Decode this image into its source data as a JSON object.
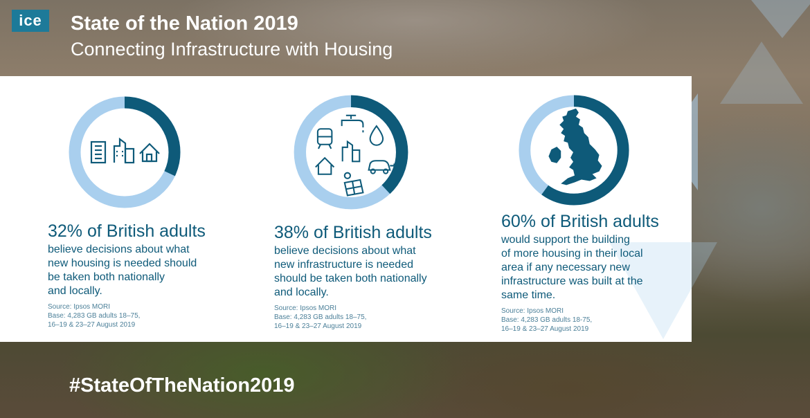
{
  "header": {
    "logo": "ice",
    "title": "State of the Nation 2019",
    "subtitle": "Connecting Infrastructure with Housing"
  },
  "colors": {
    "dark": "#0e5a79",
    "light": "#a9cfee",
    "accent": "#1d7a99"
  },
  "chart_data": [
    {
      "type": "pie",
      "values": [
        32,
        68
      ],
      "percent_label": "32% of British adults",
      "description": [
        "believe decisions about what",
        "new housing is needed should",
        "be taken both nationally",
        "and locally."
      ],
      "source": [
        "Source: Ipsos MORI",
        "Base: 4,283 GB adults 18–75,",
        "16–19 & 23–27 August 2019"
      ],
      "icons": [
        "office-building-icon",
        "city-buildings-icon",
        "house-icon"
      ]
    },
    {
      "type": "pie",
      "values": [
        38,
        62
      ],
      "percent_label": "38% of British adults",
      "description": [
        "believe decisions about what",
        "new infrastructure is needed",
        "should be taken both nationally",
        "and locally."
      ],
      "source": [
        "Source: Ipsos MORI",
        "Base: 4,283 GB adults 18–75,",
        "16–19 & 23–27 August 2019"
      ],
      "icons": [
        "train-icon",
        "water-tap-icon",
        "water-drop-icon",
        "buildings-icon",
        "house-icon",
        "electric-car-icon",
        "solar-panel-icon"
      ]
    },
    {
      "type": "pie",
      "values": [
        60,
        40
      ],
      "percent_label": "60% of British adults",
      "description": [
        "would support the building",
        "of more housing in their local",
        "area if any necessary new",
        "infrastructure was built at the",
        "same time."
      ],
      "source": [
        "Source: Ipsos MORI",
        "Base: 4,283 GB adults 18-75,",
        "16–19 & 23–27 August 2019"
      ],
      "icons": [
        "uk-map-icon"
      ]
    }
  ],
  "footer": {
    "hashtag": "#StateOfTheNation2019"
  }
}
